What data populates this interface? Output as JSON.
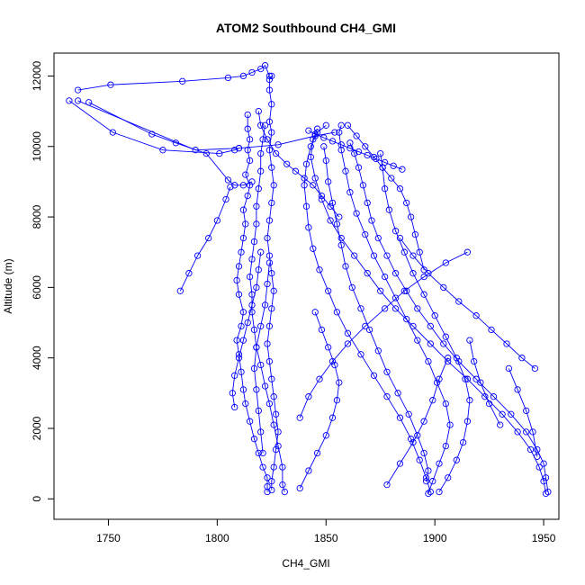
{
  "chart_data": {
    "type": "scatter",
    "title": "ATOM2 Southbound CH4_GMI",
    "xlabel": "CH4_GMI",
    "ylabel": "Altitude (m)",
    "xlim": [
      1725,
      1957
    ],
    "ylim": [
      -580,
      12650
    ],
    "x_ticks": [
      1750,
      1800,
      1850,
      1900,
      1950
    ],
    "y_ticks": [
      0,
      2000,
      4000,
      6000,
      8000,
      10000,
      12000
    ],
    "grid": false,
    "legend": "none",
    "marker": "open-circle",
    "connected": true,
    "series_color": "#0000ff",
    "profiles": [
      [
        [
          1823,
          200
        ],
        [
          1823,
          350
        ],
        [
          1823,
          600
        ],
        [
          1821,
          900
        ],
        [
          1819,
          1300
        ],
        [
          1817,
          1700
        ],
        [
          1815,
          2200
        ],
        [
          1813,
          2700
        ],
        [
          1812,
          3100
        ],
        [
          1811,
          3600
        ],
        [
          1810,
          4100
        ],
        [
          1809,
          4500
        ],
        [
          1811,
          4900
        ],
        [
          1812,
          5300
        ],
        [
          1810,
          5800
        ],
        [
          1809,
          6200
        ],
        [
          1810,
          6600
        ],
        [
          1811,
          7000
        ],
        [
          1812,
          7400
        ],
        [
          1813,
          7800
        ],
        [
          1812,
          8200
        ],
        [
          1814,
          8600
        ],
        [
          1815,
          8900
        ],
        [
          1813,
          9200
        ],
        [
          1815,
          9600
        ],
        [
          1814,
          9900
        ],
        [
          1815,
          10200
        ],
        [
          1814,
          10500
        ],
        [
          1814,
          10900
        ]
      ],
      [
        [
          1825,
          250
        ],
        [
          1825,
          500
        ],
        [
          1826,
          900
        ],
        [
          1827,
          1400
        ],
        [
          1828,
          1900
        ],
        [
          1827,
          2400
        ],
        [
          1826,
          2900
        ],
        [
          1825,
          3400
        ],
        [
          1824,
          3900
        ],
        [
          1823,
          4400
        ],
        [
          1824,
          4900
        ],
        [
          1825,
          5400
        ],
        [
          1826,
          5900
        ],
        [
          1825,
          6400
        ],
        [
          1824,
          6900
        ],
        [
          1823,
          7400
        ],
        [
          1824,
          7900
        ],
        [
          1825,
          8400
        ],
        [
          1826,
          8900
        ],
        [
          1825,
          9400
        ],
        [
          1824,
          9900
        ],
        [
          1825,
          10400
        ],
        [
          1824,
          10700
        ],
        [
          1825,
          11200
        ],
        [
          1824,
          11600
        ],
        [
          1824,
          11900
        ],
        [
          1825,
          12000
        ]
      ],
      [
        [
          1831,
          200
        ],
        [
          1830,
          400
        ],
        [
          1830,
          900
        ],
        [
          1828,
          1500
        ],
        [
          1826,
          2100
        ],
        [
          1824,
          2700
        ],
        [
          1822,
          3200
        ],
        [
          1820,
          3800
        ],
        [
          1818,
          4300
        ],
        [
          1817,
          4800
        ],
        [
          1816,
          5300
        ],
        [
          1816,
          5800
        ],
        [
          1815,
          6300
        ],
        [
          1816,
          6800
        ],
        [
          1817,
          7300
        ],
        [
          1818,
          7800
        ],
        [
          1818,
          8300
        ],
        [
          1819,
          8800
        ],
        [
          1820,
          9300
        ],
        [
          1820,
          9800
        ],
        [
          1821,
          10200
        ],
        [
          1822,
          10600
        ]
      ],
      [
        [
          1898,
          200
        ],
        [
          1896,
          600
        ],
        [
          1893,
          1100
        ],
        [
          1889,
          1700
        ],
        [
          1884,
          2300
        ],
        [
          1878,
          2900
        ],
        [
          1872,
          3500
        ],
        [
          1866,
          4100
        ],
        [
          1860,
          4700
        ],
        [
          1855,
          5300
        ],
        [
          1851,
          5900
        ],
        [
          1847,
          6500
        ],
        [
          1844,
          7100
        ],
        [
          1842,
          7700
        ],
        [
          1841,
          8300
        ],
        [
          1840,
          8900
        ],
        [
          1841,
          9500
        ],
        [
          1843,
          10000
        ],
        [
          1846,
          10400
        ],
        [
          1850,
          10600
        ]
      ],
      [
        [
          1897,
          150
        ],
        [
          1899,
          500
        ],
        [
          1902,
          1000
        ],
        [
          1905,
          1500
        ],
        [
          1907,
          2100
        ],
        [
          1905,
          2700
        ],
        [
          1901,
          3300
        ],
        [
          1897,
          3900
        ],
        [
          1892,
          4500
        ],
        [
          1887,
          5100
        ],
        [
          1882,
          5700
        ],
        [
          1877,
          6300
        ],
        [
          1872,
          6900
        ],
        [
          1868,
          7500
        ],
        [
          1864,
          8100
        ],
        [
          1861,
          8700
        ],
        [
          1859,
          9300
        ],
        [
          1857,
          9900
        ],
        [
          1856,
          10400
        ],
        [
          1857,
          10600
        ]
      ],
      [
        [
          1951,
          150
        ],
        [
          1950,
          500
        ],
        [
          1948,
          900
        ],
        [
          1944,
          1400
        ],
        [
          1938,
          1900
        ],
        [
          1931,
          2400
        ],
        [
          1923,
          2900
        ],
        [
          1915,
          3400
        ],
        [
          1906,
          3900
        ],
        [
          1898,
          4400
        ],
        [
          1890,
          4900
        ],
        [
          1882,
          5400
        ],
        [
          1875,
          5900
        ],
        [
          1869,
          6400
        ],
        [
          1863,
          6900
        ],
        [
          1857,
          7400
        ],
        [
          1852,
          7900
        ],
        [
          1848,
          8500
        ],
        [
          1845,
          9100
        ],
        [
          1843,
          9700
        ],
        [
          1844,
          10200
        ],
        [
          1846,
          10500
        ]
      ],
      [
        [
          1952,
          200
        ],
        [
          1951,
          600
        ],
        [
          1950,
          1000
        ],
        [
          1947,
          1400
        ],
        [
          1942,
          1900
        ],
        [
          1935,
          2400
        ],
        [
          1927,
          2900
        ],
        [
          1919,
          3400
        ],
        [
          1911,
          3900
        ],
        [
          1904,
          4400
        ],
        [
          1898,
          4900
        ],
        [
          1892,
          5400
        ],
        [
          1887,
          5900
        ],
        [
          1882,
          6400
        ],
        [
          1878,
          6900
        ],
        [
          1874,
          7400
        ],
        [
          1871,
          7900
        ],
        [
          1869,
          8400
        ],
        [
          1867,
          8900
        ],
        [
          1865,
          9400
        ],
        [
          1863,
          9800
        ],
        [
          1861,
          10100
        ]
      ],
      [
        [
          1736,
          11600
        ],
        [
          1751,
          11750
        ],
        [
          1784,
          11850
        ],
        [
          1805,
          11950
        ],
        [
          1812,
          12000
        ],
        [
          1816,
          12100
        ],
        [
          1820,
          12200
        ],
        [
          1822,
          12300
        ],
        [
          1824,
          12000
        ]
      ],
      [
        [
          1732,
          11300
        ],
        [
          1752,
          10400
        ],
        [
          1775,
          9900
        ],
        [
          1801,
          9800
        ],
        [
          1808,
          9900
        ],
        [
          1810,
          9950
        ]
      ],
      [
        [
          1741,
          11250
        ],
        [
          1770,
          10350
        ],
        [
          1781,
          10100
        ],
        [
          1795,
          9800
        ],
        [
          1805,
          9050
        ],
        [
          1808,
          8900
        ],
        [
          1812,
          8900
        ],
        [
          1816,
          9000
        ]
      ],
      [
        [
          1736,
          11300
        ],
        [
          1790,
          9900
        ],
        [
          1810,
          9950
        ],
        [
          1828,
          10050
        ],
        [
          1845,
          10300
        ],
        [
          1854,
          10400
        ]
      ],
      [
        [
          1806,
          8850
        ],
        [
          1804,
          8500
        ],
        [
          1800,
          7900
        ],
        [
          1796,
          7400
        ],
        [
          1791,
          6900
        ],
        [
          1787,
          6400
        ],
        [
          1783,
          5900
        ]
      ],
      [
        [
          1896,
          500
        ],
        [
          1897,
          800
        ],
        [
          1895,
          1300
        ],
        [
          1892,
          1800
        ],
        [
          1888,
          2400
        ],
        [
          1883,
          3000
        ],
        [
          1878,
          3600
        ],
        [
          1874,
          4200
        ],
        [
          1870,
          4800
        ],
        [
          1866,
          5400
        ],
        [
          1862,
          6000
        ],
        [
          1859,
          6600
        ],
        [
          1857,
          7200
        ],
        [
          1855,
          7800
        ],
        [
          1853,
          8400
        ],
        [
          1851,
          9000
        ],
        [
          1850,
          9600
        ],
        [
          1849,
          10000
        ]
      ],
      [
        [
          1902,
          200
        ],
        [
          1906,
          600
        ],
        [
          1910,
          1100
        ],
        [
          1913,
          1600
        ],
        [
          1915,
          2200
        ],
        [
          1916,
          2800
        ],
        [
          1914,
          3400
        ],
        [
          1910,
          4000
        ],
        [
          1905,
          4600
        ],
        [
          1900,
          5200
        ],
        [
          1895,
          5800
        ],
        [
          1890,
          6400
        ],
        [
          1886,
          7000
        ],
        [
          1882,
          7600
        ],
        [
          1879,
          8200
        ],
        [
          1877,
          8800
        ],
        [
          1876,
          9400
        ],
        [
          1875,
          9800
        ]
      ],
      [
        [
          1838,
          300
        ],
        [
          1842,
          800
        ],
        [
          1846,
          1300
        ],
        [
          1850,
          1800
        ],
        [
          1853,
          2300
        ],
        [
          1855,
          2800
        ],
        [
          1856,
          3300
        ],
        [
          1854,
          3800
        ],
        [
          1851,
          4300
        ],
        [
          1848,
          4800
        ],
        [
          1845,
          5300
        ]
      ],
      [
        [
          1838,
          2300
        ],
        [
          1842,
          2900
        ],
        [
          1847,
          3400
        ],
        [
          1853,
          3900
        ],
        [
          1860,
          4400
        ],
        [
          1868,
          4900
        ],
        [
          1877,
          5400
        ],
        [
          1886,
          5900
        ],
        [
          1895,
          6300
        ],
        [
          1905,
          6700
        ],
        [
          1915,
          7000
        ]
      ],
      [
        [
          1946,
          3700
        ],
        [
          1940,
          4000
        ],
        [
          1933,
          4400
        ],
        [
          1926,
          4800
        ],
        [
          1919,
          5200
        ],
        [
          1911,
          5600
        ],
        [
          1904,
          6000
        ],
        [
          1897,
          6400
        ],
        [
          1890,
          6900
        ],
        [
          1884,
          7400
        ]
      ],
      [
        [
          1878,
          400
        ],
        [
          1884,
          1000
        ],
        [
          1890,
          1600
        ],
        [
          1895,
          2200
        ],
        [
          1899,
          2800
        ],
        [
          1902,
          3400
        ],
        [
          1906,
          4000
        ]
      ],
      [
        [
          1930,
          2100
        ],
        [
          1925,
          2700
        ],
        [
          1921,
          3300
        ],
        [
          1918,
          3900
        ],
        [
          1916,
          4500
        ]
      ],
      [
        [
          1947,
          1200
        ],
        [
          1945,
          1900
        ],
        [
          1942,
          2500
        ],
        [
          1938,
          3100
        ],
        [
          1934,
          3700
        ]
      ],
      [
        [
          1808,
          2600
        ],
        [
          1807,
          3000
        ],
        [
          1808,
          3500
        ],
        [
          1810,
          4000
        ],
        [
          1812,
          4500
        ],
        [
          1814,
          5000
        ],
        [
          1816,
          5500
        ],
        [
          1818,
          6000
        ],
        [
          1819,
          6500
        ],
        [
          1820,
          7000
        ]
      ],
      [
        [
          1821,
          1300
        ],
        [
          1820,
          1900
        ],
        [
          1819,
          2500
        ],
        [
          1818,
          3100
        ],
        [
          1817,
          3700
        ],
        [
          1818,
          4300
        ],
        [
          1820,
          4900
        ],
        [
          1822,
          5500
        ],
        [
          1823,
          6100
        ],
        [
          1824,
          6700
        ]
      ],
      [
        [
          1819,
          11000
        ],
        [
          1820,
          10600
        ],
        [
          1823,
          10200
        ],
        [
          1827,
          9800
        ],
        [
          1832,
          9500
        ],
        [
          1836,
          9300
        ],
        [
          1840,
          9100
        ],
        [
          1844,
          8900
        ],
        [
          1848,
          8600
        ],
        [
          1852,
          8300
        ],
        [
          1856,
          8000
        ]
      ],
      [
        [
          1842,
          10450
        ],
        [
          1845,
          10350
        ],
        [
          1849,
          10250
        ],
        [
          1853,
          10150
        ],
        [
          1857,
          10050
        ],
        [
          1861,
          9950
        ],
        [
          1865,
          9850
        ],
        [
          1869,
          9750
        ],
        [
          1873,
          9650
        ],
        [
          1877,
          9550
        ],
        [
          1881,
          9450
        ],
        [
          1885,
          9350
        ]
      ],
      [
        [
          1860,
          10600
        ],
        [
          1864,
          10300
        ],
        [
          1868,
          10000
        ],
        [
          1872,
          9700
        ],
        [
          1876,
          9400
        ],
        [
          1880,
          9100
        ],
        [
          1884,
          8800
        ],
        [
          1887,
          8400
        ],
        [
          1889,
          8000
        ],
        [
          1891,
          7500
        ],
        [
          1893,
          7000
        ],
        [
          1895,
          6500
        ]
      ]
    ]
  }
}
